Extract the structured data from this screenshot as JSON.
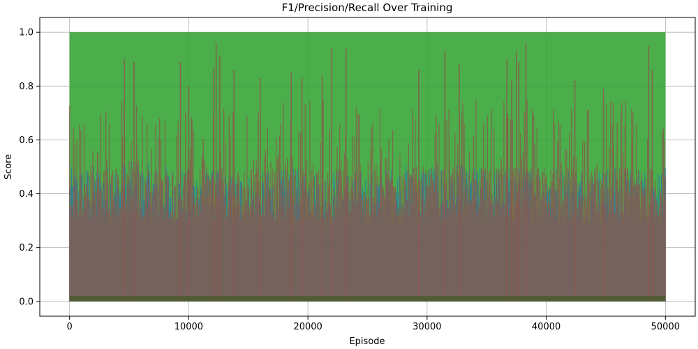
{
  "chart_data": {
    "type": "area",
    "title": "F1/Precision/Recall Over Training",
    "xlabel": "Episode",
    "ylabel": "Score",
    "xlim": [
      -2500,
      52500
    ],
    "ylim": [
      -0.055,
      1.055
    ],
    "xticks": [
      0,
      10000,
      20000,
      30000,
      40000,
      50000
    ],
    "xtick_labels": [
      "0",
      "10000",
      "20000",
      "30000",
      "40000",
      "50000"
    ],
    "yticks": [
      0.0,
      0.2,
      0.4,
      0.6,
      0.8,
      1.0
    ],
    "ytick_labels": [
      "0.0",
      "0.2",
      "0.4",
      "0.6",
      "0.8",
      "1.0"
    ],
    "grid": true,
    "x_range": [
      0,
      50000
    ],
    "series": [
      {
        "color": "#2ca02c",
        "values_summary": "dense, mostly at 1.0 across all episodes",
        "envelope_x": [
          0,
          50000
        ],
        "envelope_max": [
          1.0,
          1.0
        ]
      },
      {
        "color": "#1f77b4",
        "values_summary": "dense noisy values mostly between 0.0 and 0.5",
        "envelope_x": [
          0,
          5000,
          10000,
          15000,
          20000,
          25000,
          30000,
          35000,
          40000,
          45000,
          50000
        ],
        "envelope_max": [
          0.5,
          0.52,
          0.5,
          0.48,
          0.5,
          0.49,
          0.52,
          0.5,
          0.51,
          0.5,
          0.5
        ]
      },
      {
        "color": "#8c564b",
        "values_summary": "dense noisy values mostly between 0.0 and 0.5 with frequent spikes up to about 0.96",
        "spikes_x": [
          4600,
          5400,
          9300,
          10000,
          12100,
          12300,
          12600,
          13800,
          16000,
          18600,
          19500,
          21200,
          22000,
          23200,
          29300,
          31500,
          32700,
          36700,
          37100,
          37500,
          37700,
          38300,
          42400,
          44800,
          48600,
          48900
        ],
        "spikes_y": [
          0.9,
          0.89,
          0.89,
          0.8,
          0.87,
          0.96,
          0.91,
          0.86,
          0.83,
          0.85,
          0.83,
          0.84,
          0.94,
          0.94,
          0.86,
          0.93,
          0.88,
          0.9,
          0.82,
          0.93,
          0.89,
          0.96,
          0.82,
          0.79,
          0.95,
          0.86
        ]
      }
    ]
  }
}
